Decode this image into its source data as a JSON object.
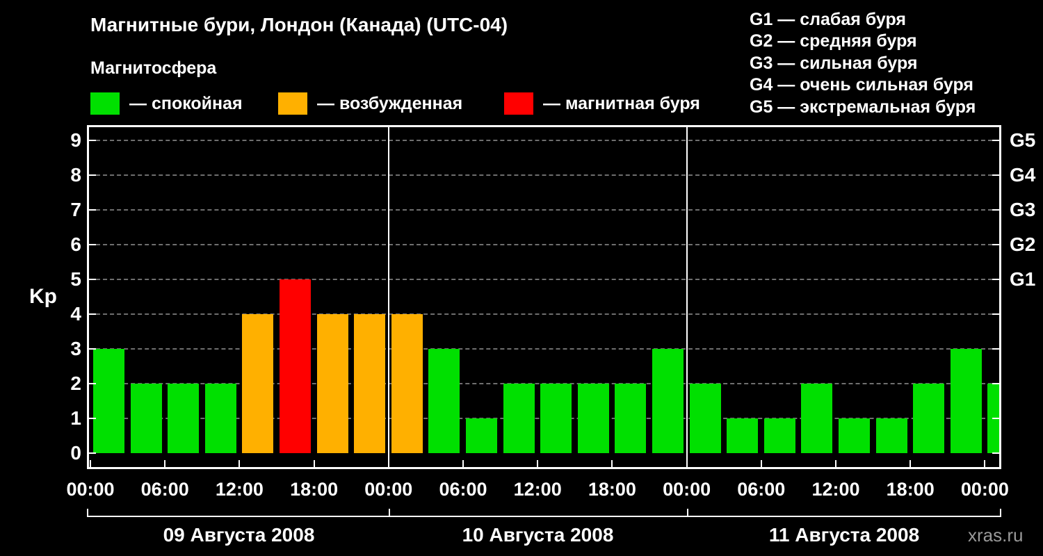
{
  "title": "Магнитные бури, Лондон (Канада) (UTC-04)",
  "legend": {
    "title": "Магнитосфера",
    "items": [
      {
        "name": "quiet",
        "color": "#00e000",
        "label": "— спокойная"
      },
      {
        "name": "excited",
        "color": "#ffb000",
        "label": "— возбужденная"
      },
      {
        "name": "storm",
        "color": "#ff0000",
        "label": "— магнитная буря"
      }
    ]
  },
  "g_legend": [
    "G1 — слабая буря",
    "G2 — средняя буря",
    "G3 — сильная буря",
    "G4 — очень сильная буря",
    "G5 — экстремальная буря"
  ],
  "watermark": "xras.ru",
  "chart_data": {
    "type": "bar",
    "title": "Магнитные бури, Лондон (Канада) (UTC-04)",
    "ylabel": "Kp",
    "ylim": [
      0,
      9.5
    ],
    "yticks": [
      0,
      1,
      2,
      3,
      4,
      5,
      6,
      7,
      8,
      9
    ],
    "bar_interval_hours": 3,
    "days": [
      {
        "date": "09 Августа 2008",
        "values": [
          3,
          2,
          2,
          2,
          4,
          5,
          4,
          4
        ]
      },
      {
        "date": "10 Августа 2008",
        "values": [
          4,
          3,
          1,
          2,
          2,
          2,
          2,
          3
        ]
      },
      {
        "date": "11 Августа 2008",
        "values": [
          2,
          1,
          1,
          2,
          1,
          1,
          2,
          3
        ]
      }
    ],
    "partial_next_value": 2,
    "time_tick_labels": [
      "00:00",
      "06:00",
      "12:00",
      "18:00",
      "00:00",
      "06:00",
      "12:00",
      "18:00",
      "00:00",
      "06:00",
      "12:00",
      "18:00",
      "00:00"
    ],
    "right_axis": [
      {
        "label": "G1",
        "kp": 5
      },
      {
        "label": "G2",
        "kp": 6
      },
      {
        "label": "G3",
        "kp": 7
      },
      {
        "label": "G4",
        "kp": 8
      },
      {
        "label": "G5",
        "kp": 9
      }
    ],
    "color_thresholds": {
      "quiet_max": 3,
      "excited_max": 4
    },
    "colors": {
      "quiet": "#00e000",
      "excited": "#ffb000",
      "storm": "#ff0000",
      "grid": "#6f6f6f",
      "axis": "#ffffff"
    },
    "grid": "dashed-horizontal",
    "legend_position": "top"
  }
}
